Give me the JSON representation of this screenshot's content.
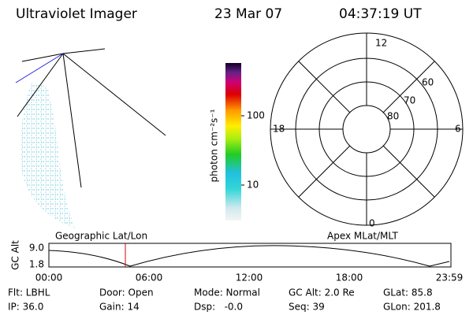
{
  "header": {
    "title": "Ultraviolet Imager",
    "date": "23 Mar 07",
    "time": "04:37:19 UT"
  },
  "colorbar": {
    "label": "photon cm⁻²s⁻¹",
    "ticks": [
      "100",
      "10"
    ]
  },
  "polar": {
    "mlt_labels": [
      "12",
      "18",
      "6",
      "0"
    ],
    "lat_labels": [
      "60",
      "70",
      "80"
    ]
  },
  "timeline": {
    "left_title": "Geographic Lat/Lon",
    "right_title": "Apex MLat/MLT",
    "y_title": "GC Alt",
    "y_labels": [
      "9.0",
      "1.8"
    ],
    "x_labels": [
      "00:00",
      "06:00",
      "12:00",
      "18:00",
      "23:59"
    ]
  },
  "footer": {
    "rows": [
      [
        "Flt: LBHL",
        "Door: Open",
        "Mode: Normal",
        "GC Alt: 2.0 Re",
        "GLat: 85.8"
      ],
      [
        "IP: 36.0",
        "Gain: 14",
        "Dsp:   -0.0",
        "Seq: 39",
        "GLon: 201.8"
      ]
    ]
  }
}
